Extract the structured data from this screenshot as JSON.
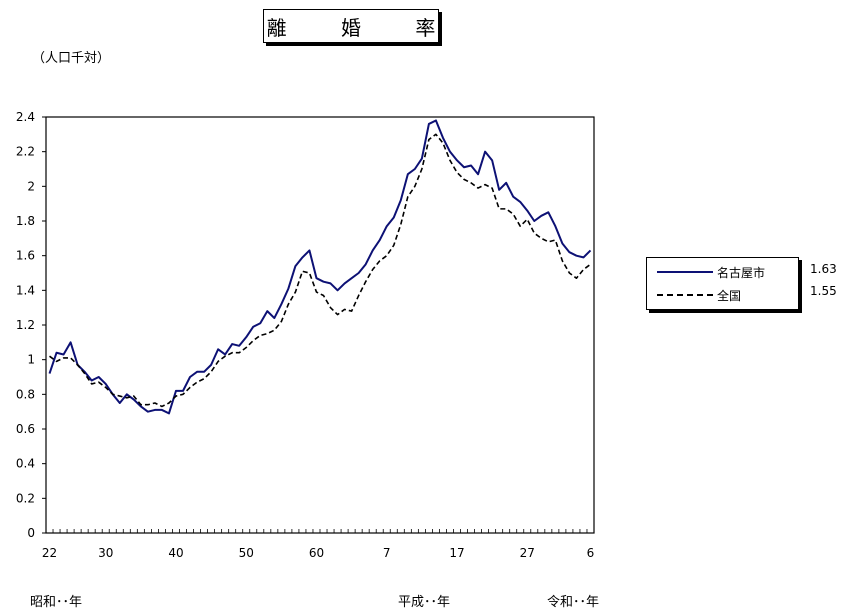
{
  "title": "離 婚 率",
  "unit_label": "（人口千対）",
  "era_labels": {
    "showa": "昭和･･年",
    "heisei": "平成･･年",
    "reiwa": "令和･･年"
  },
  "legend": [
    {
      "name": "名古屋市",
      "latest": "1.63",
      "color": "#0d1175",
      "style": "solid"
    },
    {
      "name": "全国",
      "latest": "1.55",
      "color": "#000000",
      "style": "dashed"
    }
  ],
  "chart_data": {
    "type": "line",
    "title": "離 婚 率",
    "ylabel": "（人口千対）",
    "ylim": [
      0,
      2.4
    ],
    "yticks": [
      "0",
      "0.2",
      "0.4",
      "0.6",
      "0.8",
      "1",
      "1.2",
      "1.4",
      "1.6",
      "1.8",
      "2",
      "2.2",
      "2.4"
    ],
    "xticks": [
      "22",
      "30",
      "40",
      "50",
      "60",
      "7",
      "17",
      "27",
      "6"
    ],
    "x": [
      "S22",
      "S23",
      "S24",
      "S25",
      "S26",
      "S27",
      "S28",
      "S29",
      "S30",
      "S31",
      "S32",
      "S33",
      "S34",
      "S35",
      "S36",
      "S37",
      "S38",
      "S39",
      "S40",
      "S41",
      "S42",
      "S43",
      "S44",
      "S45",
      "S46",
      "S47",
      "S48",
      "S49",
      "S50",
      "S51",
      "S52",
      "S53",
      "S54",
      "S55",
      "S56",
      "S57",
      "S58",
      "S59",
      "S60",
      "S61",
      "S62",
      "S63",
      "H1",
      "H2",
      "H3",
      "H4",
      "H5",
      "H6",
      "H7",
      "H8",
      "H9",
      "H10",
      "H11",
      "H12",
      "H13",
      "H14",
      "H15",
      "H16",
      "H17",
      "H18",
      "H19",
      "H20",
      "H21",
      "H22",
      "H23",
      "H24",
      "H25",
      "H26",
      "H27",
      "H28",
      "H29",
      "H30",
      "R1",
      "R2",
      "R3",
      "R4",
      "R5",
      "R6"
    ],
    "series": [
      {
        "name": "名古屋市",
        "values": [
          0.92,
          1.04,
          1.03,
          1.1,
          0.97,
          0.93,
          0.88,
          0.9,
          0.86,
          0.8,
          0.75,
          0.8,
          0.77,
          0.73,
          0.7,
          0.71,
          0.71,
          0.69,
          0.82,
          0.82,
          0.9,
          0.93,
          0.93,
          0.97,
          1.06,
          1.03,
          1.09,
          1.08,
          1.13,
          1.19,
          1.21,
          1.28,
          1.24,
          1.32,
          1.41,
          1.54,
          1.59,
          1.63,
          1.47,
          1.45,
          1.44,
          1.4,
          1.44,
          1.47,
          1.5,
          1.55,
          1.63,
          1.69,
          1.77,
          1.82,
          1.92,
          2.07,
          2.1,
          2.16,
          2.36,
          2.38,
          2.28,
          2.2,
          2.15,
          2.11,
          2.12,
          2.07,
          2.2,
          2.15,
          1.98,
          2.02,
          1.94,
          1.91,
          1.86,
          1.8,
          1.83,
          1.85,
          1.77,
          1.67,
          1.62,
          1.6,
          1.59,
          1.63
        ]
      },
      {
        "name": "全国",
        "values": [
          1.02,
          0.99,
          1.01,
          1.01,
          0.97,
          0.92,
          0.86,
          0.87,
          0.84,
          0.8,
          0.79,
          0.78,
          0.79,
          0.74,
          0.74,
          0.75,
          0.73,
          0.75,
          0.79,
          0.8,
          0.84,
          0.87,
          0.89,
          0.93,
          0.99,
          1.02,
          1.04,
          1.04,
          1.07,
          1.11,
          1.14,
          1.15,
          1.17,
          1.22,
          1.32,
          1.39,
          1.51,
          1.5,
          1.39,
          1.37,
          1.3,
          1.26,
          1.29,
          1.28,
          1.37,
          1.45,
          1.52,
          1.57,
          1.6,
          1.66,
          1.78,
          1.94,
          2.0,
          2.1,
          2.27,
          2.3,
          2.25,
          2.15,
          2.08,
          2.04,
          2.02,
          1.99,
          2.01,
          1.99,
          1.87,
          1.87,
          1.84,
          1.77,
          1.81,
          1.73,
          1.7,
          1.68,
          1.69,
          1.57,
          1.5,
          1.47,
          1.52,
          1.55
        ]
      }
    ]
  }
}
